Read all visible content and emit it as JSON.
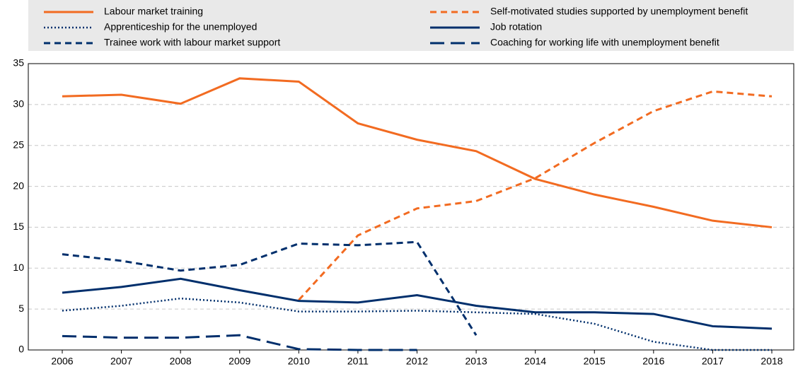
{
  "chart_data": {
    "type": "line",
    "categories": [
      "2006",
      "2007",
      "2008",
      "2009",
      "2010",
      "2011",
      "2012",
      "2013",
      "2014",
      "2015",
      "2016",
      "2017",
      "2018"
    ],
    "series": [
      {
        "name": "Labour market training",
        "color": "#f26b21",
        "style": "solid",
        "values": [
          31.0,
          31.2,
          30.1,
          33.2,
          32.8,
          27.7,
          25.7,
          24.3,
          20.9,
          19.0,
          17.5,
          15.8,
          15.0
        ]
      },
      {
        "name": "Self-motivated studies supported by unemployment benefit",
        "color": "#f26b21",
        "style": "dashed",
        "values": [
          null,
          null,
          null,
          null,
          6.1,
          14.0,
          17.3,
          18.2,
          21.0,
          25.3,
          29.2,
          31.6,
          31.0
        ]
      },
      {
        "name": "Apprenticeship for the unemployed",
        "color": "#002f6c",
        "style": "dotted",
        "values": [
          4.8,
          5.4,
          6.3,
          5.8,
          4.7,
          4.7,
          4.8,
          4.6,
          4.4,
          3.2,
          1.0,
          0.0,
          0.0
        ]
      },
      {
        "name": "Job rotation",
        "color": "#002f6c",
        "style": "solid",
        "values": [
          7.0,
          7.7,
          8.7,
          7.3,
          6.0,
          5.8,
          6.7,
          5.4,
          4.6,
          4.6,
          4.4,
          2.9,
          2.6
        ]
      },
      {
        "name": "Trainee work with labour market support",
        "color": "#002f6c",
        "style": "dashed",
        "values": [
          11.7,
          10.9,
          9.7,
          10.4,
          13.0,
          12.8,
          13.2,
          1.8,
          null,
          null,
          null,
          null,
          null
        ]
      },
      {
        "name": "Coaching for working life with unemployment benefit",
        "color": "#002f6c",
        "style": "longdash",
        "values": [
          1.7,
          1.5,
          1.5,
          1.8,
          0.1,
          0.0,
          0.0,
          null,
          null,
          null,
          null,
          null,
          null
        ]
      }
    ],
    "ylim": [
      0,
      35
    ],
    "yticks": [
      0,
      5,
      10,
      15,
      20,
      25,
      30,
      35
    ],
    "grid": true
  }
}
